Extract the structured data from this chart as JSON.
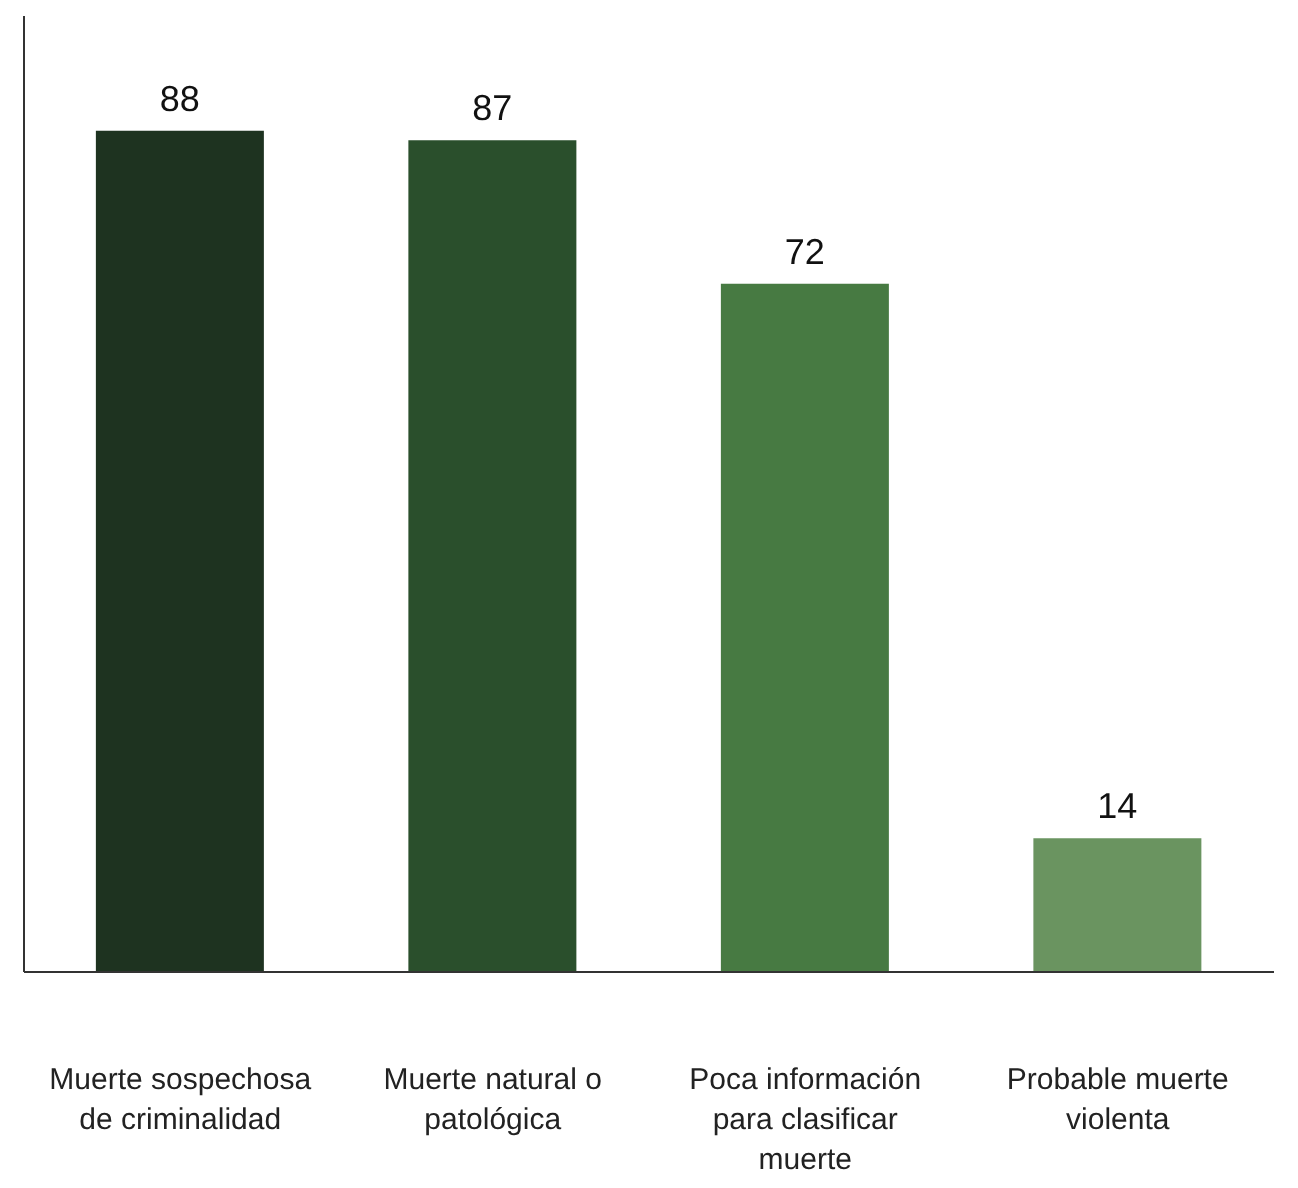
{
  "chart_data": {
    "type": "bar",
    "categories": [
      "Muerte sospechosa de criminalidad",
      "Muerte natural o patológica",
      "Poca información para clasificar muerte",
      "Probable muerte violenta"
    ],
    "values": [
      88,
      87,
      72,
      14
    ],
    "colors": [
      "#1e3320",
      "#2a4f2c",
      "#477a42",
      "#6a9460"
    ],
    "data_labels": true,
    "grid": false,
    "legend": false
  }
}
